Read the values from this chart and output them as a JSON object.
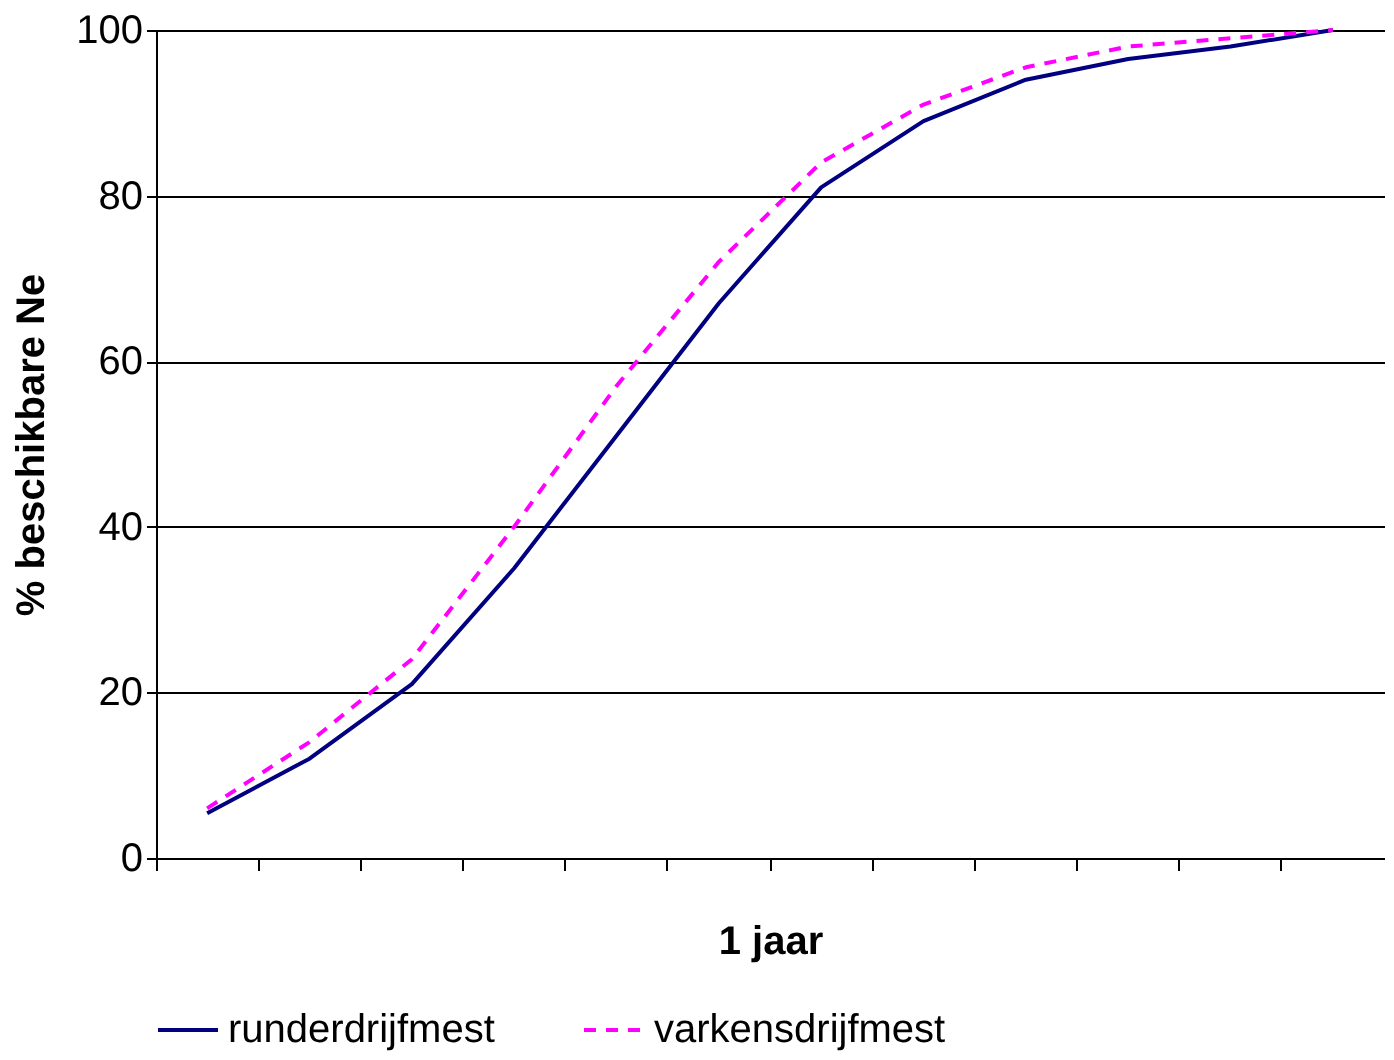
{
  "chart_data": {
    "type": "line",
    "xlabel": "1 jaar",
    "ylabel": "% beschikbare Ne",
    "categories": [
      null,
      null,
      null,
      null,
      null,
      null,
      null,
      null,
      null,
      null,
      null,
      null
    ],
    "series": [
      {
        "name": "runderdrijfmest",
        "color": "#000080",
        "line_style": "solid",
        "values": [
          5.4,
          12,
          21,
          35,
          51,
          67,
          81,
          89,
          94,
          96.5,
          98,
          100
        ]
      },
      {
        "name": "varkensdrijfmest",
        "color": "#ff00ff",
        "line_style": "dashed",
        "values": [
          6,
          14,
          24,
          40,
          57,
          72,
          84,
          91,
          95.5,
          98,
          99,
          100
        ]
      }
    ],
    "ylim": [
      0,
      100
    ],
    "yticks": [
      0,
      20,
      40,
      60,
      80,
      100
    ],
    "grid": "y",
    "legend": "bottom",
    "tick_labels": "y",
    "marker": "none"
  }
}
